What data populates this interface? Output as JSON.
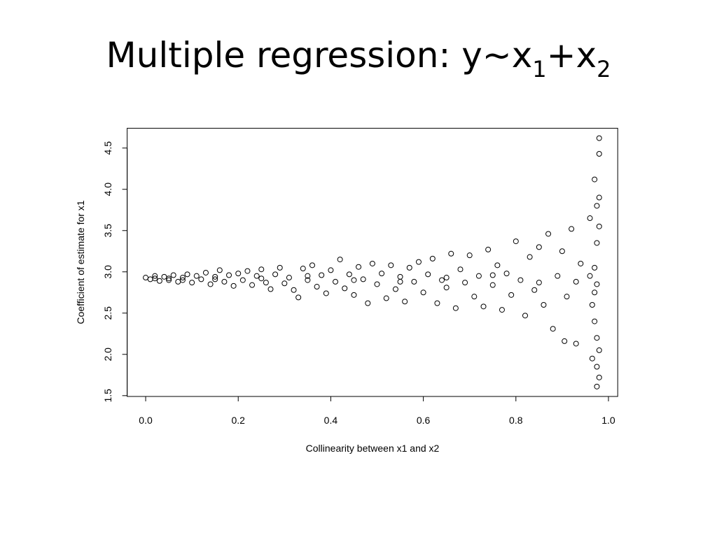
{
  "chart_data": {
    "type": "scatter",
    "title": [
      "Multiple regression: y~x",
      "1",
      "+x",
      "2"
    ],
    "x_label": "Collinearity between x1 and x2",
    "y_label": "Coefficient of estimate for x1",
    "color": "#000000",
    "xlim": [
      -0.04,
      1.02
    ],
    "ylim": [
      1.49,
      4.74
    ],
    "xticks": [
      {
        "value": 0,
        "label": "0.0"
      },
      0.2,
      0.4,
      0.6,
      0.8,
      {
        "value": 1,
        "label": "1.0"
      }
    ],
    "yticks": [
      1.5,
      {
        "value": 2,
        "label": "2.0"
      },
      2.5,
      {
        "value": 3,
        "label": "3.0"
      },
      3.5,
      {
        "value": 4,
        "label": "4.0"
      },
      4.5
    ],
    "x": [
      0.0,
      0.01,
      0.02,
      0.03,
      0.04,
      0.05,
      0.06,
      0.07,
      0.08,
      0.09,
      0.1,
      0.11,
      0.12,
      0.13,
      0.14,
      0.15,
      0.16,
      0.17,
      0.18,
      0.19,
      0.2,
      0.21,
      0.22,
      0.23,
      0.24,
      0.25,
      0.26,
      0.27,
      0.28,
      0.29,
      0.3,
      0.31,
      0.32,
      0.33,
      0.34,
      0.35,
      0.36,
      0.37,
      0.38,
      0.39,
      0.4,
      0.41,
      0.42,
      0.43,
      0.44,
      0.45,
      0.46,
      0.47,
      0.48,
      0.49,
      0.5,
      0.51,
      0.52,
      0.53,
      0.54,
      0.55,
      0.56,
      0.57,
      0.58,
      0.59,
      0.6,
      0.61,
      0.62,
      0.63,
      0.64,
      0.65,
      0.66,
      0.67,
      0.68,
      0.69,
      0.7,
      0.71,
      0.72,
      0.73,
      0.74,
      0.75,
      0.76,
      0.77,
      0.78,
      0.79,
      0.8,
      0.81,
      0.82,
      0.83,
      0.84,
      0.85,
      0.86,
      0.87,
      0.88,
      0.89,
      0.9,
      0.905,
      0.91,
      0.92,
      0.93,
      0.93,
      0.94,
      0.96,
      0.965,
      0.97,
      0.97,
      0.975,
      0.975,
      0.975,
      0.98,
      0.98,
      0.98,
      0.98,
      0.975,
      0.97,
      0.98,
      0.965,
      0.975,
      0.96,
      0.98,
      0.975,
      0.97,
      0.05,
      0.15,
      0.25,
      0.35,
      0.45,
      0.55,
      0.65,
      0.75,
      0.85,
      0.02,
      0.08
    ],
    "y": [
      2.93,
      2.91,
      2.95,
      2.89,
      2.94,
      2.9,
      2.96,
      2.88,
      2.93,
      2.97,
      2.87,
      2.95,
      2.91,
      2.99,
      2.85,
      2.94,
      3.02,
      2.88,
      2.96,
      2.83,
      2.98,
      2.9,
      3.01,
      2.84,
      2.95,
      3.03,
      2.87,
      2.79,
      2.97,
      3.05,
      2.86,
      2.93,
      2.78,
      2.69,
      3.04,
      2.9,
      3.08,
      2.82,
      2.96,
      2.74,
      3.02,
      2.88,
      3.15,
      2.8,
      2.97,
      2.72,
      3.06,
      2.91,
      2.62,
      3.1,
      2.85,
      2.98,
      2.68,
      3.08,
      2.79,
      2.94,
      2.64,
      3.05,
      2.88,
      3.12,
      2.75,
      2.97,
      3.16,
      2.62,
      2.9,
      2.81,
      3.22,
      2.56,
      3.03,
      2.87,
      3.2,
      2.7,
      2.95,
      2.58,
      3.27,
      2.84,
      3.08,
      2.54,
      2.98,
      2.72,
      3.37,
      2.9,
      2.47,
      3.18,
      2.78,
      3.3,
      2.6,
      3.46,
      2.31,
      2.95,
      3.25,
      2.16,
      2.7,
      3.52,
      2.13,
      2.88,
      3.1,
      3.65,
      1.95,
      4.12,
      2.4,
      3.8,
      1.61,
      3.35,
      4.43,
      4.62,
      2.05,
      1.72,
      2.85,
      3.05,
      3.9,
      2.6,
      2.2,
      2.95,
      3.55,
      1.85,
      2.75,
      2.92,
      2.91,
      2.92,
      2.95,
      2.9,
      2.88,
      2.93,
      2.96,
      2.87,
      2.92,
      2.9
    ]
  }
}
